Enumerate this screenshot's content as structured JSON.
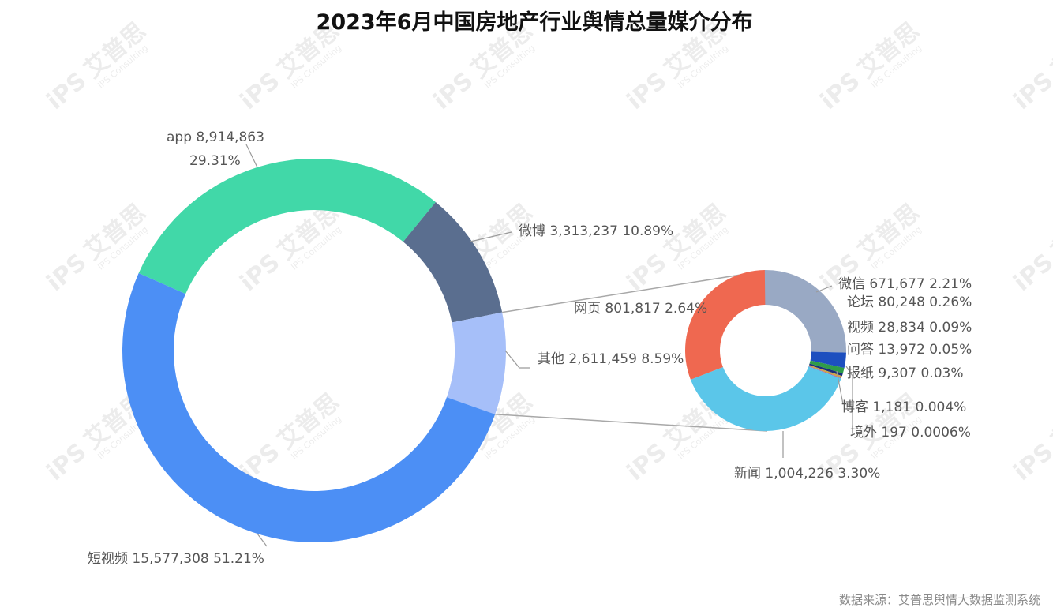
{
  "chart_data": {
    "type": "pie",
    "subtype": "pie-of-pie (donut)",
    "title": "2023年6月中国房地产行业舆情总量媒介分布",
    "source": "数据来源：艾普思舆情大数据监测系统",
    "watermark": {
      "cn": "艾普思",
      "logo": "iPS",
      "en": "IPS Consulting"
    },
    "main": [
      {
        "name": "app",
        "value": 8914863,
        "value_label": "8,914,863",
        "percent": "29.31%",
        "color": "#41d8a8"
      },
      {
        "name": "微博",
        "value": 3313237,
        "value_label": "3,313,237",
        "percent": "10.89%",
        "color": "#5a6e8f"
      },
      {
        "name": "其他",
        "value": 2611459,
        "value_label": "2,611,459",
        "percent": "8.59%",
        "color": "#a6bff9"
      },
      {
        "name": "短视频",
        "value": 15577308,
        "value_label": "15,577,308",
        "percent": "51.21%",
        "color": "#4c8ff5"
      }
    ],
    "secondary_of": "其他",
    "secondary": [
      {
        "name": "微信",
        "value": 671677,
        "value_label": "671,677",
        "percent": "2.21%",
        "color": "#99a9c4"
      },
      {
        "name": "论坛",
        "value": 80248,
        "value_label": "80,248",
        "percent": "0.26%",
        "color": "#1d4fbf"
      },
      {
        "name": "视频",
        "value": 28834,
        "value_label": "28,834",
        "percent": "0.09%",
        "color": "#2f9c48"
      },
      {
        "name": "问答",
        "value": 13972,
        "value_label": "13,972",
        "percent": "0.05%",
        "color": "#1a2f7a"
      },
      {
        "name": "报纸",
        "value": 9307,
        "value_label": "9,307",
        "percent": "0.03%",
        "color": "#c9a648"
      },
      {
        "name": "博客",
        "value": 1181,
        "value_label": "1,181",
        "percent": "0.004%",
        "color": "#e27b3c"
      },
      {
        "name": "境外",
        "value": 197,
        "value_label": "197",
        "percent": "0.0006%",
        "color": "#8a3fb0"
      },
      {
        "name": "新闻",
        "value": 1004226,
        "value_label": "1,004,226",
        "percent": "3.30%",
        "color": "#5bc6e9"
      },
      {
        "name": "网页",
        "value": 801817,
        "value_label": "801,817",
        "percent": "2.64%",
        "color": "#ef6850"
      }
    ]
  }
}
